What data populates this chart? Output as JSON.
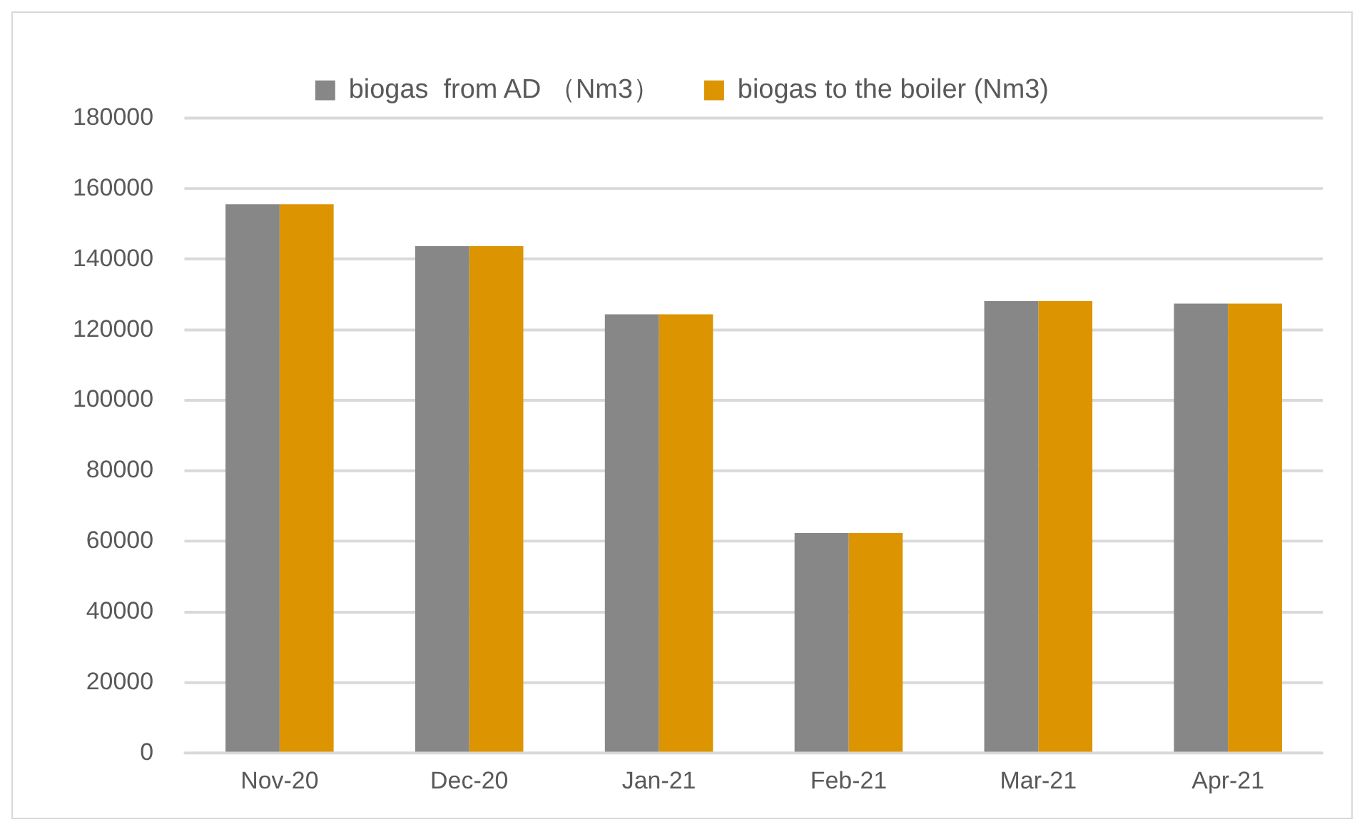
{
  "chart_data": {
    "type": "bar",
    "categories": [
      "Nov-20",
      "Dec-20",
      "Jan-21",
      "Feb-21",
      "Mar-21",
      "Apr-21"
    ],
    "series": [
      {
        "name": "biogas  from AD （Nm3）",
        "color": "#878787",
        "values": [
          155600,
          143700,
          124400,
          62400,
          128100,
          127400
        ]
      },
      {
        "name": "biogas to the boiler (Nm3)",
        "color": "#dc9400",
        "values": [
          155600,
          143700,
          124400,
          62400,
          128100,
          127400
        ]
      }
    ],
    "ylim": [
      0,
      180000
    ],
    "yticks": [
      0,
      20000,
      40000,
      60000,
      80000,
      100000,
      120000,
      140000,
      160000,
      180000
    ],
    "grid": "y",
    "legend": "top"
  }
}
